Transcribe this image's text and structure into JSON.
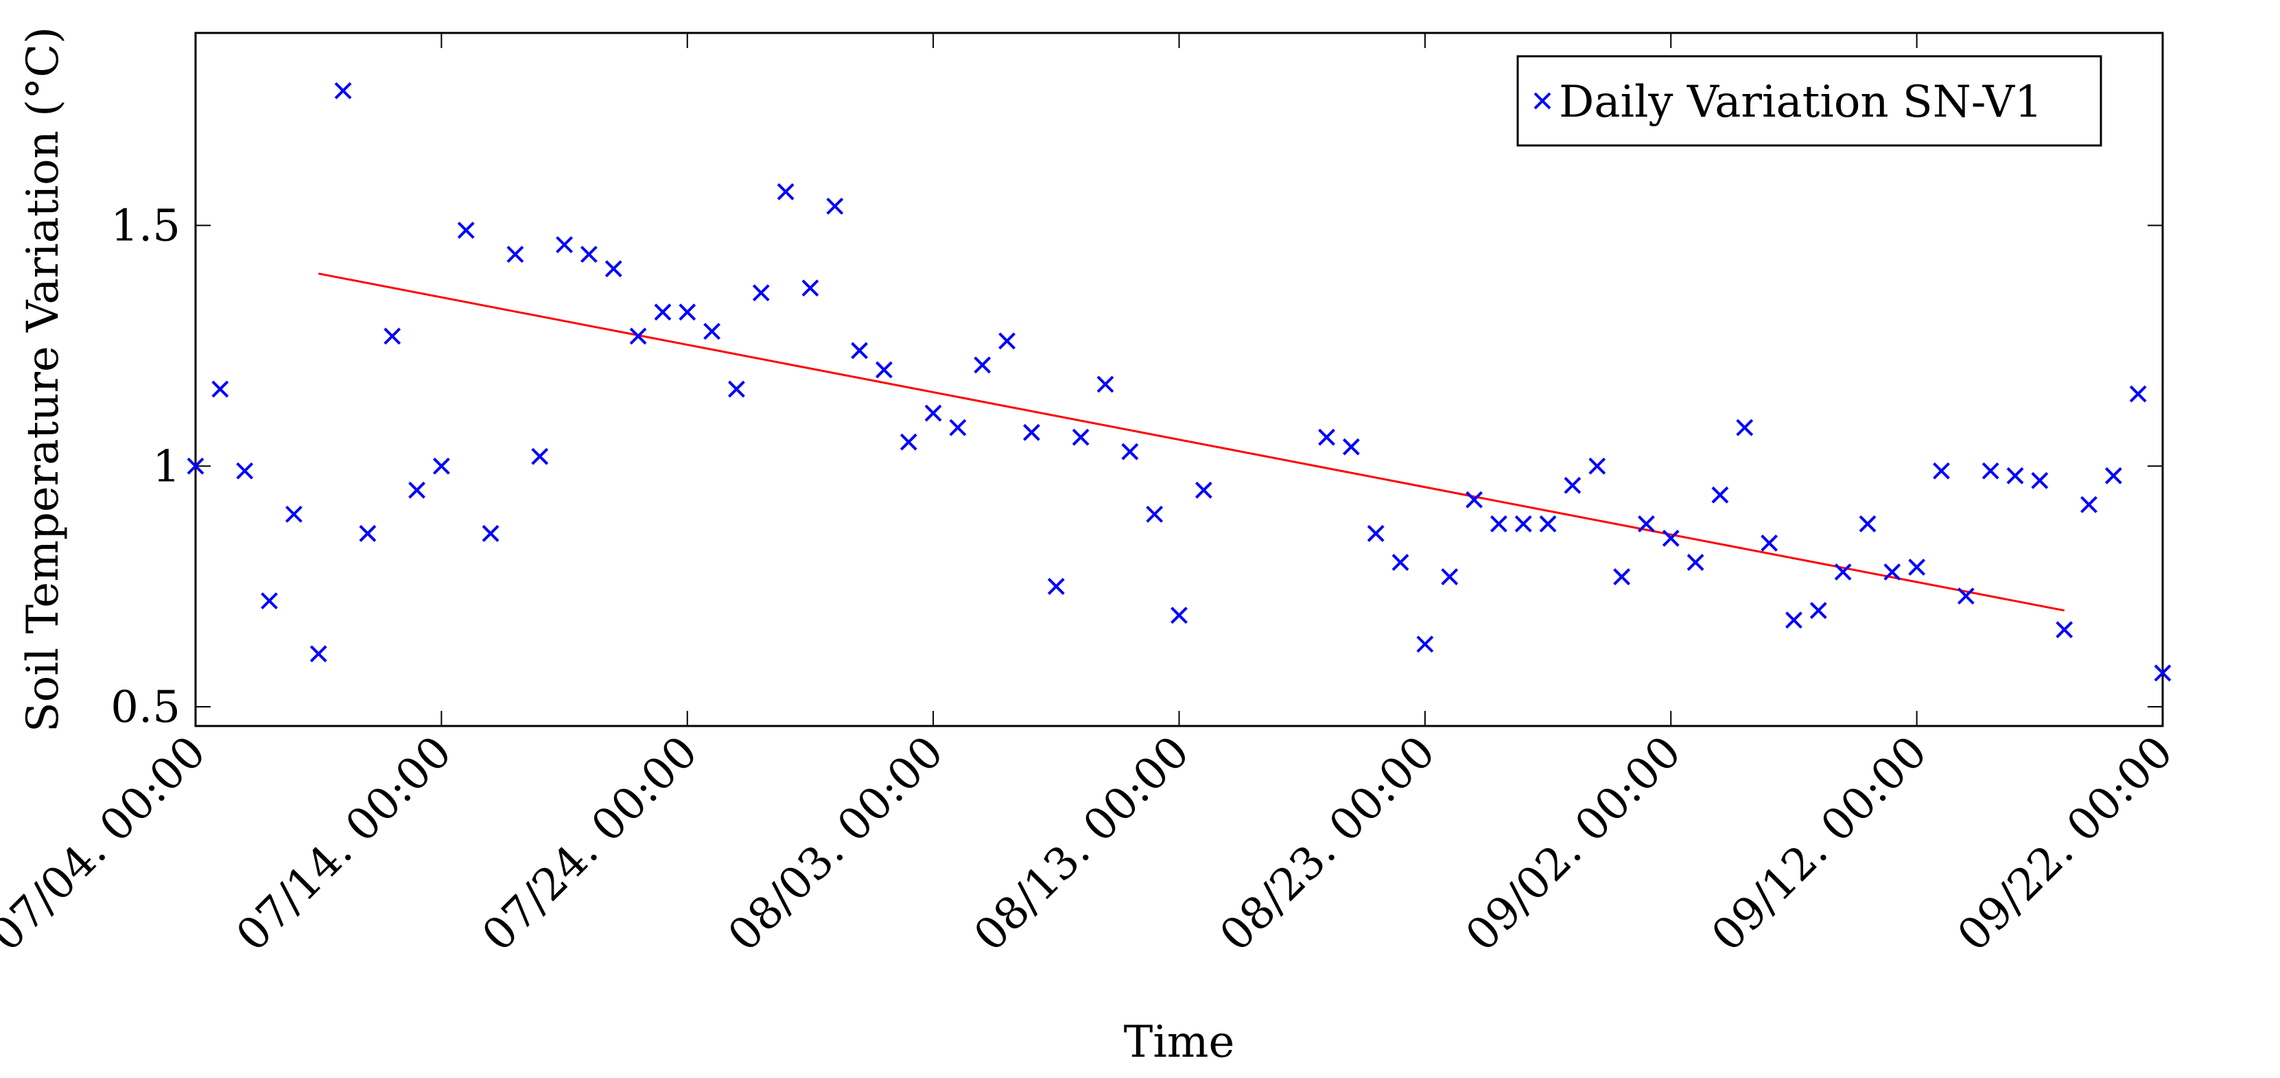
{
  "chart_data": {
    "type": "scatter",
    "title": "",
    "xlabel": "Time",
    "ylabel": "Soil Temperature Variation (°C)",
    "xlim": [
      0,
      80
    ],
    "ylim": [
      0.46,
      1.9
    ],
    "x_ticks": [
      {
        "day": 0,
        "label": "07/04. 00:00"
      },
      {
        "day": 10,
        "label": "07/14. 00:00"
      },
      {
        "day": 20,
        "label": "07/24. 00:00"
      },
      {
        "day": 30,
        "label": "08/03. 00:00"
      },
      {
        "day": 40,
        "label": "08/13. 00:00"
      },
      {
        "day": 50,
        "label": "08/23. 00:00"
      },
      {
        "day": 60,
        "label": "09/02. 00:00"
      },
      {
        "day": 70,
        "label": "09/12. 00:00"
      },
      {
        "day": 80,
        "label": "09/22. 00:00"
      }
    ],
    "y_ticks": [
      {
        "value": 0.5,
        "label": "0.5"
      },
      {
        "value": 1.0,
        "label": "1"
      },
      {
        "value": 1.5,
        "label": "1.5"
      }
    ],
    "legend": {
      "position": "top-right",
      "label": "Daily Variation SN-V1"
    },
    "series": [
      {
        "name": "Daily Variation SN-V1",
        "marker": "x",
        "color": "#0000ff",
        "x": [
          0,
          1,
          2,
          3,
          4,
          5,
          6,
          7,
          8,
          9,
          10,
          11,
          12,
          13,
          14,
          15,
          16,
          17,
          18,
          19,
          20,
          21,
          22,
          23,
          24,
          25,
          26,
          27,
          28,
          29,
          30,
          31,
          32,
          33,
          34,
          35,
          36,
          37,
          38,
          39,
          40,
          41,
          46,
          47,
          48,
          49,
          50,
          51,
          52,
          53,
          54,
          55,
          56,
          57,
          58,
          59,
          60,
          61,
          62,
          63,
          64,
          65,
          66,
          67,
          68,
          69,
          70,
          71,
          72,
          73,
          74,
          75,
          76,
          77,
          78,
          79,
          80
        ],
        "y": [
          1.0,
          1.16,
          0.99,
          0.72,
          0.9,
          0.61,
          1.78,
          0.86,
          1.27,
          0.95,
          1.0,
          1.49,
          0.86,
          1.44,
          1.02,
          1.46,
          1.44,
          1.41,
          1.27,
          1.32,
          1.32,
          1.28,
          1.16,
          1.36,
          1.57,
          1.37,
          1.54,
          1.24,
          1.2,
          1.05,
          1.11,
          1.08,
          1.21,
          1.26,
          1.07,
          0.75,
          1.06,
          1.17,
          1.03,
          0.9,
          0.69,
          0.95,
          1.06,
          1.04,
          0.86,
          0.8,
          0.63,
          0.77,
          0.93,
          0.88,
          0.88,
          0.88,
          0.96,
          1.0,
          0.77,
          0.88,
          0.85,
          0.8,
          0.94,
          1.08,
          0.84,
          0.68,
          0.7,
          0.78,
          0.88,
          0.78,
          0.79,
          0.99,
          0.73,
          0.99,
          0.98,
          0.97,
          0.66,
          0.92,
          0.98,
          1.15,
          0.57
        ]
      }
    ],
    "trendline": {
      "name": "linear fit",
      "color": "#ff0000",
      "x": [
        5,
        76
      ],
      "y": [
        1.4,
        0.7
      ]
    }
  }
}
